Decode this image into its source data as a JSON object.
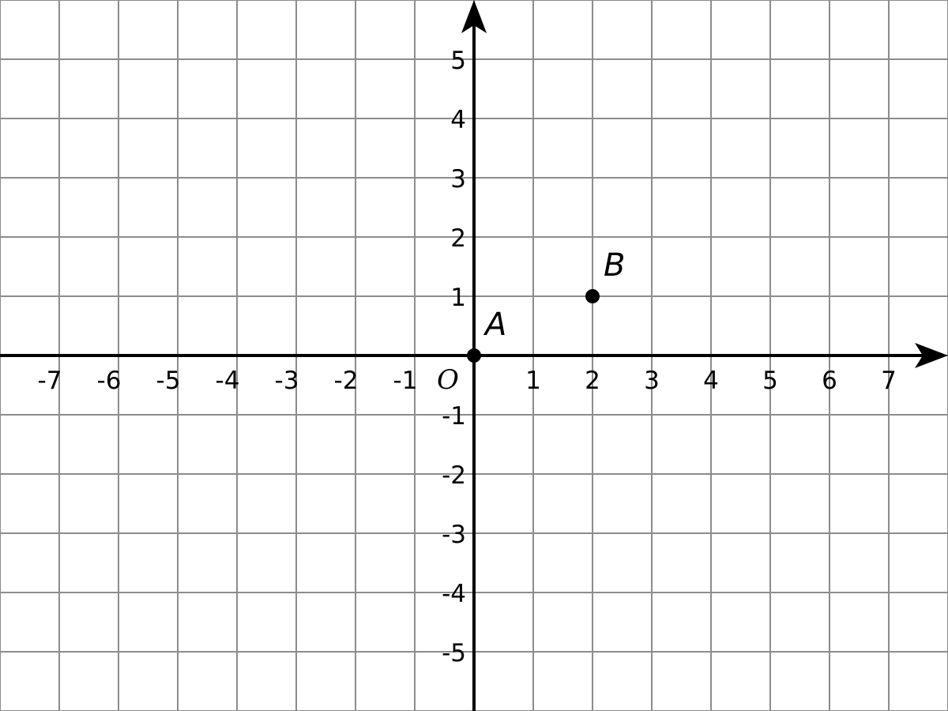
{
  "chart_data": {
    "type": "scatter",
    "title": "",
    "xlabel": "",
    "ylabel": "",
    "xlim": [
      -8,
      8
    ],
    "ylim": [
      -6,
      6
    ],
    "grid": true,
    "x_ticks": [
      -7,
      -6,
      -5,
      -4,
      -3,
      -2,
      -1,
      1,
      2,
      3,
      4,
      5,
      6,
      7
    ],
    "y_ticks": [
      5,
      4,
      3,
      2,
      1,
      -1,
      -2,
      -3,
      -4,
      -5
    ],
    "origin_label": "O",
    "points": [
      {
        "label": "A",
        "x": 0,
        "y": 0
      },
      {
        "label": "B",
        "x": 2,
        "y": 1
      }
    ],
    "colors": {
      "grid": "#8c8c8c",
      "axis": "#000000",
      "point": "#000000"
    }
  }
}
